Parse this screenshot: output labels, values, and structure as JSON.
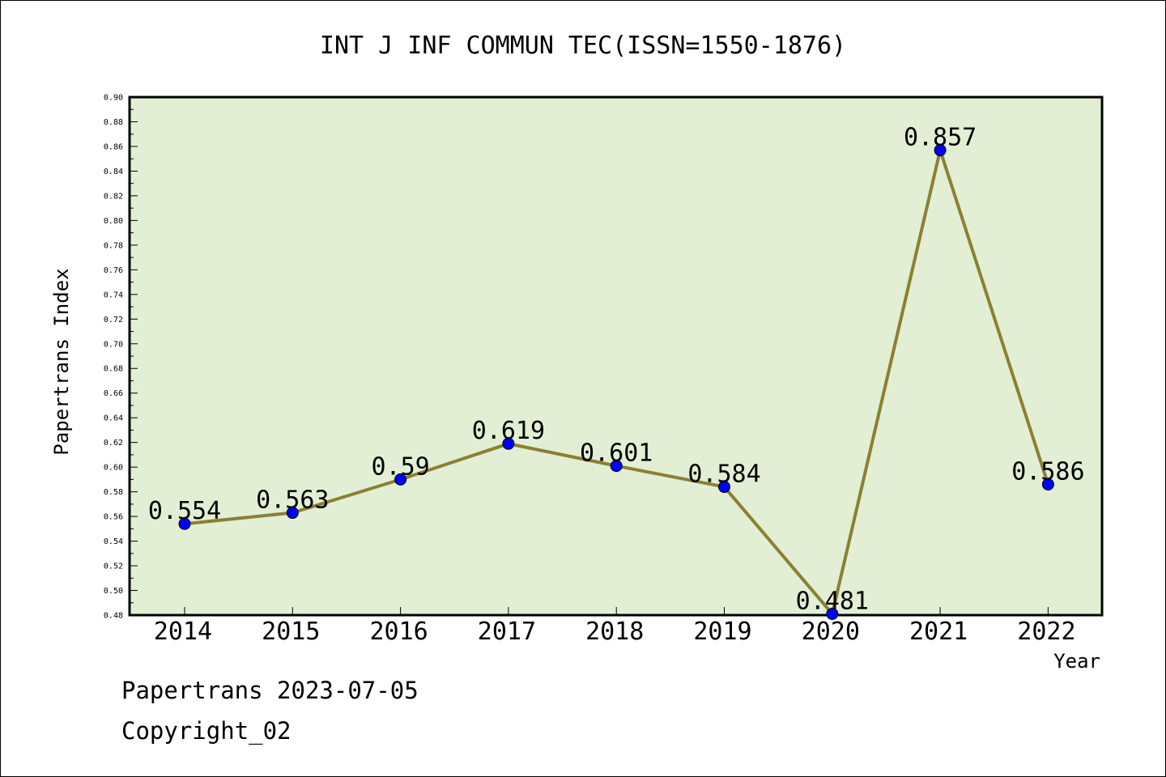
{
  "chart_data": {
    "type": "line",
    "title": "INT J INF COMMUN TEC(ISSN=1550-1876)",
    "xlabel": "Year",
    "ylabel": "Papertrans Index",
    "x": [
      "2014",
      "2015",
      "2016",
      "2017",
      "2018",
      "2019",
      "2020",
      "2021",
      "2022"
    ],
    "values": [
      0.554,
      0.563,
      0.59,
      0.619,
      0.601,
      0.584,
      0.481,
      0.857,
      0.586
    ],
    "data_labels": [
      "0.554",
      "0.563",
      "0.59",
      "0.619",
      "0.601",
      "0.584",
      "0.481",
      "0.857",
      "0.586"
    ],
    "ylim": [
      0.48,
      0.9
    ],
    "yticks": [
      "0.48",
      "0.50",
      "0.52",
      "0.54",
      "0.56",
      "0.58",
      "0.60",
      "0.62",
      "0.64",
      "0.66",
      "0.68",
      "0.70",
      "0.72",
      "0.74",
      "0.76",
      "0.78",
      "0.80",
      "0.82",
      "0.84",
      "0.86",
      "0.88",
      "0.90"
    ],
    "grid": false,
    "legend": "none",
    "colors": {
      "plot_background": "#e2efd4",
      "line": "#8b8033",
      "marker": "#0000ff"
    }
  },
  "footer": {
    "line1": "Papertrans 2023-07-05",
    "line2": "Copyright_02"
  }
}
